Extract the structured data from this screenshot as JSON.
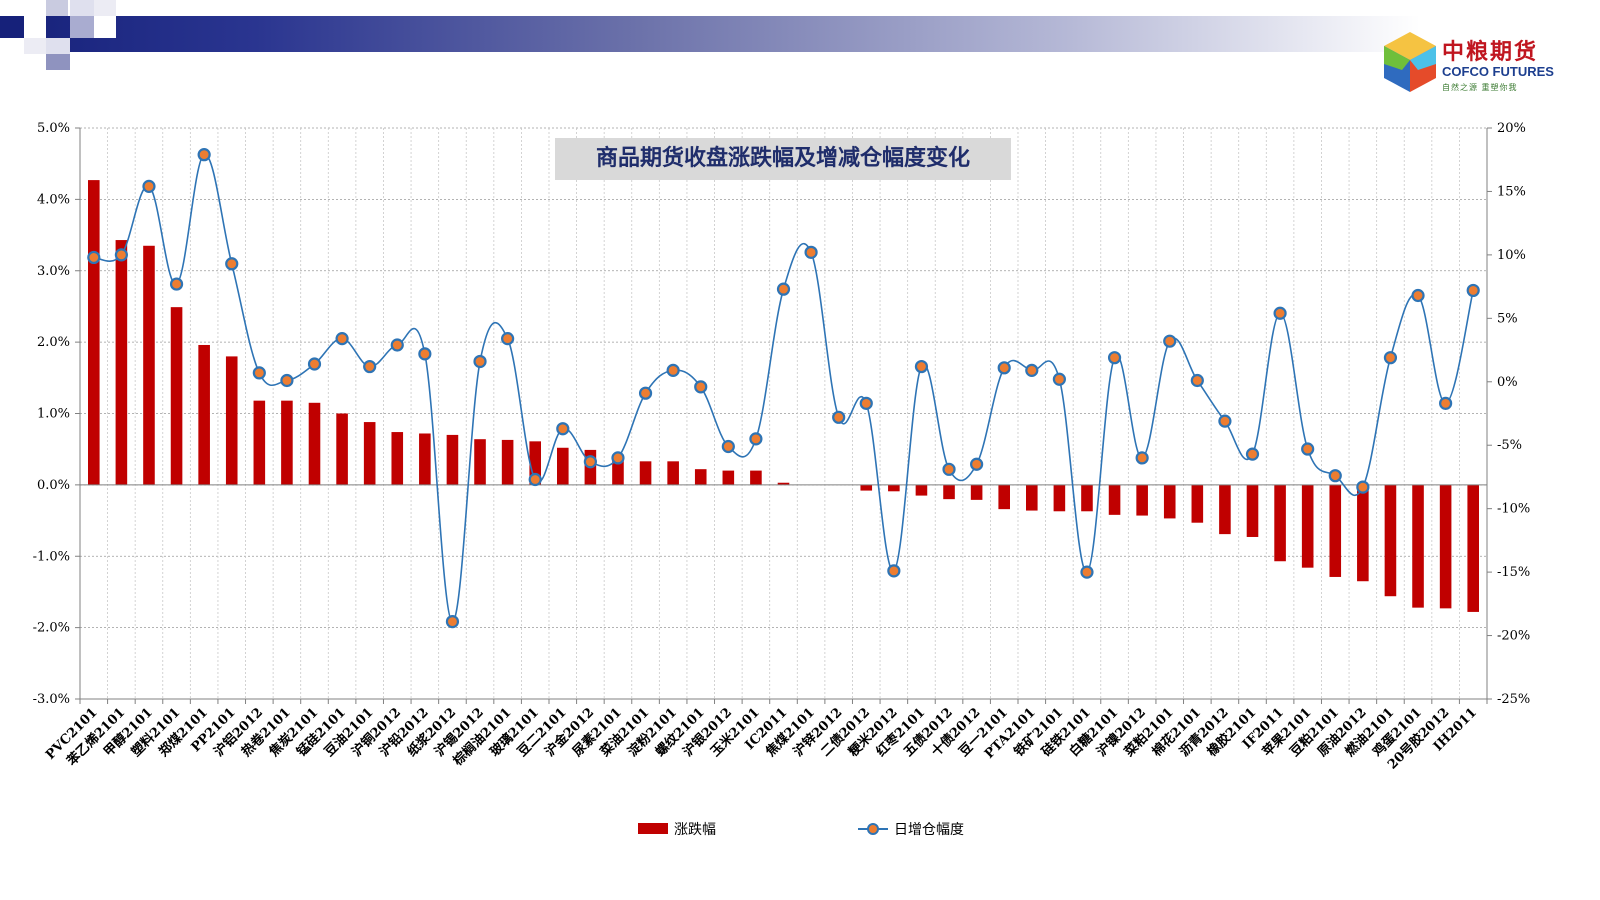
{
  "brand": {
    "name_cn": "中粮期货",
    "name_en": "COFCO FUTURES",
    "slogan": "自然之源 重塑你我"
  },
  "colors": {
    "bar": "#c00000",
    "line": "#2e74b5",
    "marker_fill": "#ed7d31",
    "header_dark": "#16217a",
    "title_text": "#1f2d6b"
  },
  "chart_data": {
    "type": "bar",
    "title": "商品期货收盘涨跌幅及增减仓幅度变化",
    "categories": [
      "PVC2101",
      "苯乙烯2101",
      "甲醇2101",
      "塑料2101",
      "郑煤2101",
      "PP2101",
      "沪铝2012",
      "热卷2101",
      "焦炭2101",
      "锰硅2101",
      "豆油2101",
      "沪铜2012",
      "沪铅2012",
      "纸浆2012",
      "沪锡2012",
      "棕榈油2101",
      "玻璃2101",
      "豆二2101",
      "沪金2012",
      "尿素2101",
      "菜油2101",
      "淀粉2101",
      "螺纹2101",
      "沪银2012",
      "玉米2101",
      "IC2011",
      "焦煤2101",
      "沪锌2012",
      "二债2012",
      "粳米2012",
      "红枣2101",
      "五债2012",
      "十债2012",
      "豆一2101",
      "PTA2101",
      "铁矿2101",
      "硅铁2101",
      "白糖2101",
      "沪镍2012",
      "菜粕2101",
      "棉花2101",
      "沥青2012",
      "橡胶2101",
      "IF2011",
      "苹果2101",
      "豆粕2101",
      "原油2012",
      "燃油2101",
      "鸡蛋2101",
      "20号胶2012",
      "IH2011"
    ],
    "series": [
      {
        "name": "涨跌幅",
        "type": "bar",
        "axis": "left",
        "values": [
          4.27,
          3.43,
          3.35,
          2.49,
          1.96,
          1.8,
          1.18,
          1.18,
          1.15,
          1.0,
          0.88,
          0.74,
          0.72,
          0.7,
          0.64,
          0.63,
          0.61,
          0.52,
          0.49,
          0.42,
          0.33,
          0.33,
          0.22,
          0.2,
          0.2,
          0.03,
          0.0,
          0.0,
          -0.08,
          -0.09,
          -0.15,
          -0.2,
          -0.21,
          -0.34,
          -0.36,
          -0.37,
          -0.37,
          -0.42,
          -0.43,
          -0.47,
          -0.53,
          -0.69,
          -0.73,
          -1.07,
          -1.16,
          -1.29,
          -1.35,
          -1.56,
          -1.72,
          -1.73,
          -1.78
        ]
      },
      {
        "name": "日增仓幅度",
        "type": "line",
        "axis": "right",
        "values": [
          9.8,
          10.0,
          15.4,
          7.7,
          17.9,
          9.3,
          0.7,
          0.1,
          1.4,
          3.4,
          1.2,
          2.9,
          2.2,
          -18.9,
          1.6,
          3.4,
          -7.7,
          -3.7,
          -6.3,
          -6.0,
          -0.9,
          0.9,
          -0.4,
          -5.1,
          -4.5,
          7.3,
          10.2,
          -2.8,
          -1.7,
          -14.9,
          1.2,
          -6.9,
          -6.5,
          1.1,
          0.9,
          0.2,
          -15.0,
          1.9,
          -6.0,
          3.2,
          0.1,
          -3.1,
          -5.7,
          5.4,
          -5.3,
          -7.4,
          -8.3,
          1.9,
          6.8,
          -1.7,
          7.2
        ]
      }
    ],
    "y_left": {
      "min": -3.0,
      "max": 5.0,
      "step": 1.0,
      "ticks": [
        "-3.0%",
        "-2.0%",
        "-1.0%",
        "0.0%",
        "1.0%",
        "2.0%",
        "3.0%",
        "4.0%",
        "5.0%"
      ]
    },
    "y_right": {
      "min": -25,
      "max": 20,
      "step": 5,
      "ticks": [
        "-25%",
        "-20%",
        "-15%",
        "-10%",
        "-5%",
        "0%",
        "5%",
        "10%",
        "15%",
        "20%"
      ]
    },
    "grid": true,
    "legend": {
      "position": "bottom",
      "items": [
        "涨跌幅",
        "日增仓幅度"
      ]
    }
  }
}
